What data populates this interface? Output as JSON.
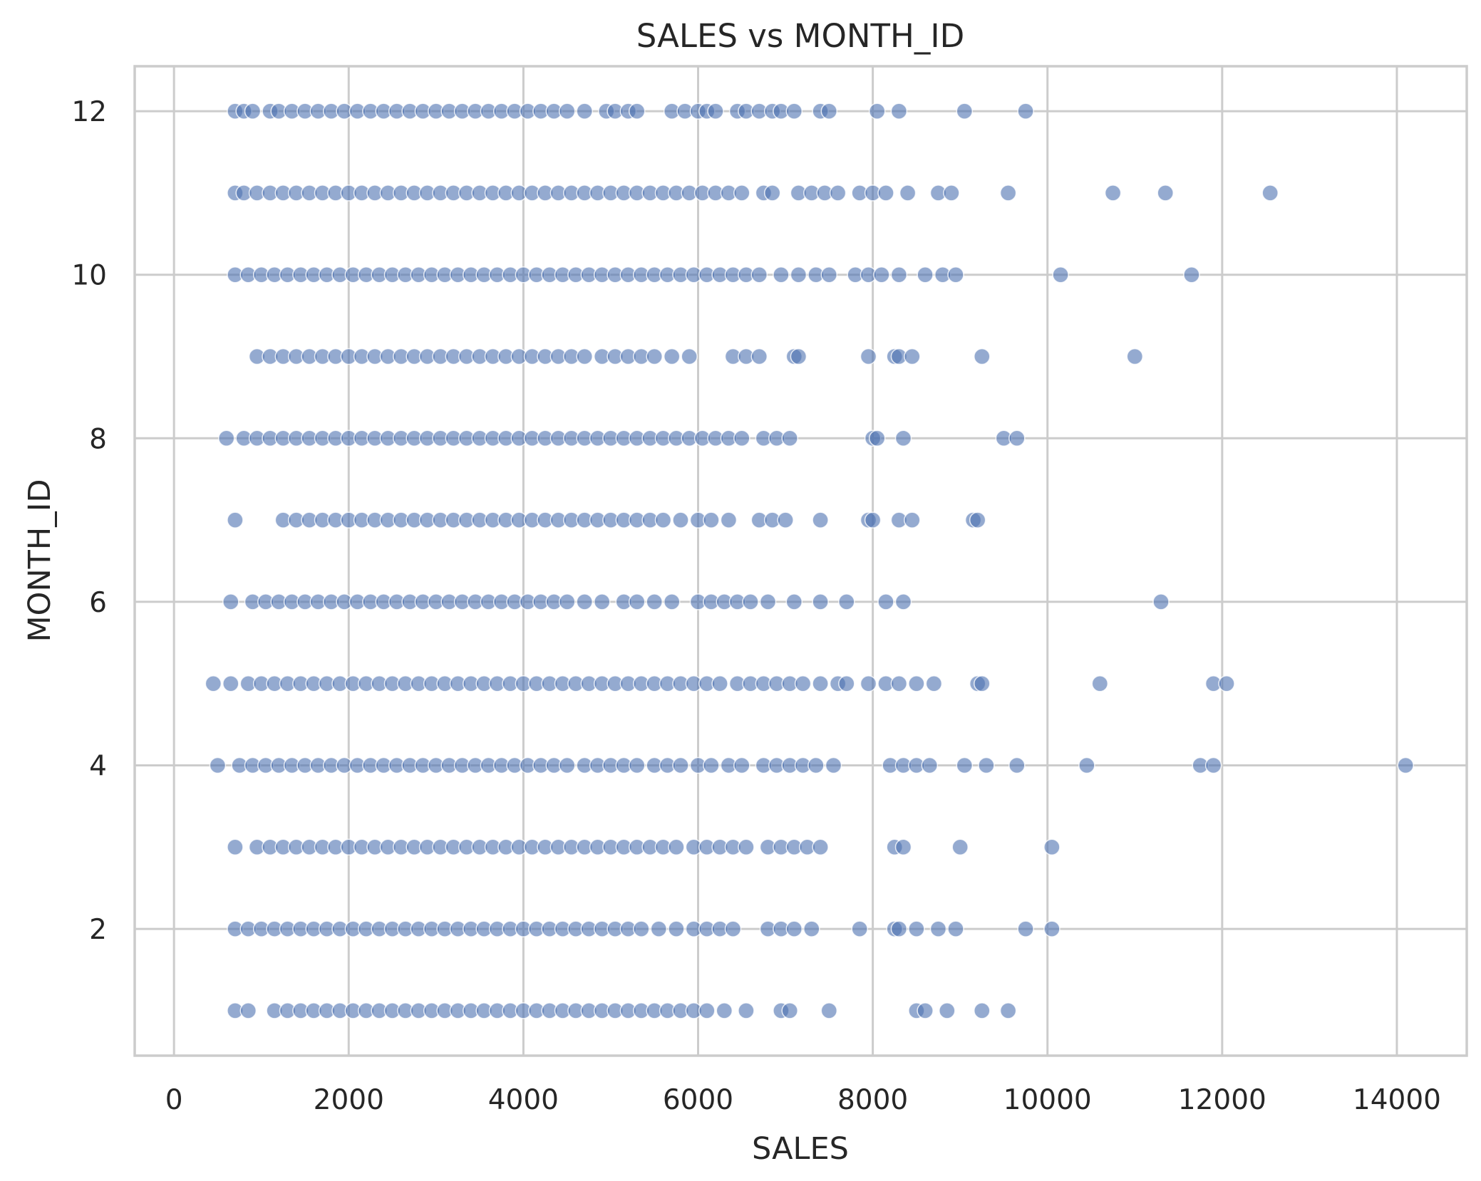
{
  "chart_data": {
    "type": "scatter",
    "title": "SALES vs MONTH_ID",
    "xlabel": "SALES",
    "ylabel": "MONTH_ID",
    "xlim": [
      -450,
      14800
    ],
    "ylim": [
      0.45,
      12.55
    ],
    "xticks": [
      0,
      2000,
      4000,
      6000,
      8000,
      10000,
      12000,
      14000
    ],
    "yticks": [
      2,
      4,
      6,
      8,
      10,
      12
    ],
    "grid": true,
    "color": "#4c72b0",
    "series": [
      {
        "y": 12,
        "x": [
          700,
          800,
          900,
          1100,
          1200,
          1350,
          1500,
          1650,
          1800,
          1950,
          2100,
          2250,
          2400,
          2550,
          2700,
          2850,
          3000,
          3150,
          3300,
          3450,
          3600,
          3750,
          3900,
          4050,
          4200,
          4350,
          4500,
          4700,
          4950,
          5050,
          5200,
          5300,
          5700,
          5850,
          6000,
          6100,
          6200,
          6450,
          6550,
          6700,
          6850,
          6950,
          7100,
          7400,
          7500,
          8050,
          8300,
          9050,
          9750
        ]
      },
      {
        "y": 11,
        "x": [
          700,
          800,
          950,
          1100,
          1250,
          1400,
          1550,
          1700,
          1850,
          2000,
          2150,
          2300,
          2450,
          2600,
          2750,
          2900,
          3050,
          3200,
          3350,
          3500,
          3650,
          3800,
          3950,
          4100,
          4250,
          4400,
          4550,
          4700,
          4850,
          5000,
          5150,
          5300,
          5450,
          5600,
          5750,
          5900,
          6050,
          6200,
          6350,
          6500,
          6750,
          6850,
          7150,
          7300,
          7450,
          7600,
          7850,
          8000,
          8150,
          8400,
          8750,
          8900,
          9550,
          10750,
          11350,
          12550
        ]
      },
      {
        "y": 10,
        "x": [
          700,
          850,
          1000,
          1150,
          1300,
          1450,
          1600,
          1750,
          1900,
          2050,
          2200,
          2350,
          2500,
          2650,
          2800,
          2950,
          3100,
          3250,
          3400,
          3550,
          3700,
          3850,
          4000,
          4150,
          4300,
          4450,
          4600,
          4750,
          4900,
          5050,
          5200,
          5350,
          5500,
          5650,
          5800,
          5950,
          6100,
          6250,
          6400,
          6550,
          6700,
          6950,
          7150,
          7350,
          7500,
          7800,
          7950,
          8100,
          8300,
          8600,
          8800,
          8950,
          10150,
          11650
        ]
      },
      {
        "y": 9,
        "x": [
          950,
          1100,
          1250,
          1400,
          1550,
          1700,
          1850,
          2000,
          2150,
          2300,
          2450,
          2600,
          2750,
          2900,
          3050,
          3200,
          3350,
          3500,
          3650,
          3800,
          3950,
          4100,
          4250,
          4400,
          4550,
          4700,
          4900,
          5050,
          5200,
          5350,
          5500,
          5700,
          5900,
          6400,
          6550,
          6700,
          7100,
          7150,
          7950,
          8250,
          8300,
          8450,
          9250,
          11000
        ]
      },
      {
        "y": 8,
        "x": [
          600,
          800,
          950,
          1100,
          1250,
          1400,
          1550,
          1700,
          1850,
          2000,
          2150,
          2300,
          2450,
          2600,
          2750,
          2900,
          3050,
          3200,
          3350,
          3500,
          3650,
          3800,
          3950,
          4100,
          4250,
          4400,
          4550,
          4700,
          4850,
          5000,
          5150,
          5300,
          5450,
          5600,
          5750,
          5900,
          6050,
          6200,
          6350,
          6500,
          6750,
          6900,
          7050,
          8000,
          8050,
          8350,
          9500,
          9650
        ]
      },
      {
        "y": 7,
        "x": [
          700,
          1250,
          1400,
          1550,
          1700,
          1850,
          2000,
          2150,
          2300,
          2450,
          2600,
          2750,
          2900,
          3050,
          3200,
          3350,
          3500,
          3650,
          3800,
          3950,
          4100,
          4250,
          4400,
          4550,
          4700,
          4850,
          5000,
          5150,
          5300,
          5450,
          5600,
          5800,
          6000,
          6150,
          6350,
          6700,
          6850,
          7000,
          7400,
          7950,
          8000,
          8300,
          8450,
          9150,
          9200
        ]
      },
      {
        "y": 6,
        "x": [
          650,
          900,
          1050,
          1200,
          1350,
          1500,
          1650,
          1800,
          1950,
          2100,
          2250,
          2400,
          2550,
          2700,
          2850,
          3000,
          3150,
          3300,
          3450,
          3600,
          3750,
          3900,
          4050,
          4200,
          4350,
          4500,
          4700,
          4900,
          5150,
          5300,
          5500,
          5700,
          6000,
          6150,
          6300,
          6450,
          6600,
          6800,
          7100,
          7400,
          7700,
          8150,
          8350,
          11300
        ]
      },
      {
        "y": 5,
        "x": [
          450,
          650,
          850,
          1000,
          1150,
          1300,
          1450,
          1600,
          1750,
          1900,
          2050,
          2200,
          2350,
          2500,
          2650,
          2800,
          2950,
          3100,
          3250,
          3400,
          3550,
          3700,
          3850,
          4000,
          4150,
          4300,
          4450,
          4600,
          4750,
          4900,
          5050,
          5200,
          5350,
          5500,
          5650,
          5800,
          5950,
          6100,
          6250,
          6450,
          6600,
          6750,
          6900,
          7050,
          7200,
          7400,
          7600,
          7700,
          7950,
          8150,
          8300,
          8500,
          8700,
          9200,
          9250,
          10600,
          11900,
          12050
        ]
      },
      {
        "y": 4,
        "x": [
          500,
          750,
          900,
          1050,
          1200,
          1350,
          1500,
          1650,
          1800,
          1950,
          2100,
          2250,
          2400,
          2550,
          2700,
          2850,
          3000,
          3150,
          3300,
          3450,
          3600,
          3750,
          3900,
          4050,
          4200,
          4350,
          4500,
          4700,
          4850,
          5000,
          5150,
          5300,
          5500,
          5650,
          5800,
          6000,
          6150,
          6350,
          6500,
          6750,
          6900,
          7050,
          7200,
          7350,
          7550,
          8200,
          8350,
          8500,
          8650,
          9050,
          9300,
          9650,
          10450,
          11750,
          11900,
          14100
        ]
      },
      {
        "y": 3,
        "x": [
          700,
          950,
          1100,
          1250,
          1400,
          1550,
          1700,
          1850,
          2000,
          2150,
          2300,
          2450,
          2600,
          2750,
          2900,
          3050,
          3200,
          3350,
          3500,
          3650,
          3800,
          3950,
          4100,
          4250,
          4400,
          4550,
          4700,
          4850,
          5000,
          5150,
          5300,
          5450,
          5600,
          5750,
          5950,
          6100,
          6250,
          6400,
          6550,
          6800,
          6950,
          7100,
          7250,
          7400,
          8250,
          8350,
          9000,
          10050
        ]
      },
      {
        "y": 2,
        "x": [
          700,
          850,
          1000,
          1150,
          1300,
          1450,
          1600,
          1750,
          1900,
          2050,
          2200,
          2350,
          2500,
          2650,
          2800,
          2950,
          3100,
          3250,
          3400,
          3550,
          3700,
          3850,
          4000,
          4150,
          4300,
          4450,
          4600,
          4750,
          4900,
          5050,
          5200,
          5350,
          5550,
          5750,
          5950,
          6100,
          6250,
          6400,
          6800,
          6950,
          7100,
          7300,
          7850,
          8250,
          8300,
          8500,
          8750,
          8950,
          9750,
          10050
        ]
      },
      {
        "y": 1,
        "x": [
          700,
          850,
          1150,
          1300,
          1450,
          1600,
          1750,
          1900,
          2050,
          2200,
          2350,
          2500,
          2650,
          2800,
          2950,
          3100,
          3250,
          3400,
          3550,
          3700,
          3850,
          4000,
          4150,
          4300,
          4450,
          4600,
          4750,
          4900,
          5050,
          5200,
          5350,
          5500,
          5650,
          5800,
          5950,
          6100,
          6300,
          6550,
          6950,
          7050,
          7500,
          8500,
          8600,
          8850,
          9250,
          9550
        ]
      }
    ]
  }
}
